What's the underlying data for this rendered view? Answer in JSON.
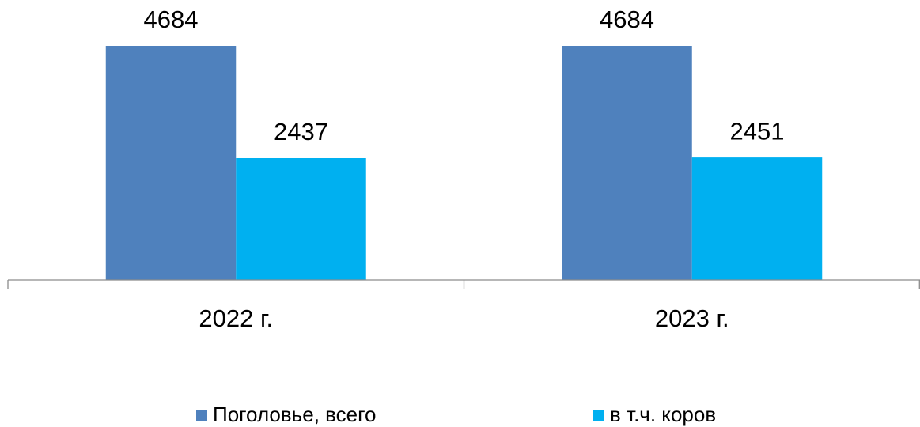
{
  "chart_data": {
    "type": "bar",
    "categories": [
      "2022 г.",
      "2023 г."
    ],
    "series": [
      {
        "name": "Поголовье, всего",
        "color": "#4f81bd",
        "values": [
          4684,
          4684
        ]
      },
      {
        "name": "в т.ч. коров",
        "color": "#00b0f0",
        "values": [
          2437,
          2451
        ]
      }
    ]
  }
}
